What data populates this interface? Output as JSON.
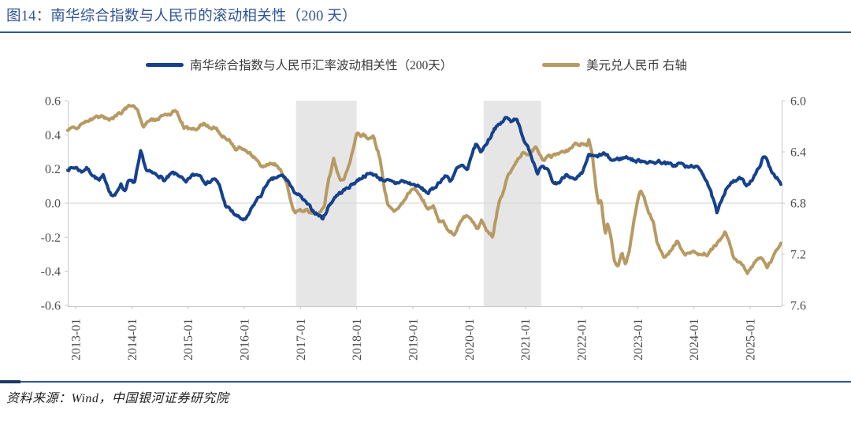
{
  "title": {
    "label": "图14：南华综合指数与人民币的滚动相关性（200 天）"
  },
  "legend": [
    {
      "label": "南华综合指数与人民币汇率波动相关性（200天）",
      "color": "#16418C"
    },
    {
      "label": "美元兑人民币 右轴",
      "color": "#B79A63"
    }
  ],
  "source": {
    "label": "资料来源：Wind，中国银河证券研究院"
  },
  "colors": {
    "title_blue": "#2F5597",
    "rule_blue": "#2F5597",
    "band_gray": "#E6E6E6",
    "axis_text": "#4D4D4D",
    "axis_line": "#C9C9C9",
    "grid_line": "#D9D9D9"
  },
  "chart_data": {
    "type": "line",
    "title": "南华综合指数与人民币的滚动相关性（200 天）",
    "x_axis": {
      "start_year": 2012.86,
      "end_year": 2025.56,
      "tick_years": [
        2013,
        2014,
        2015,
        2016,
        2017,
        2018,
        2019,
        2020,
        2021,
        2022,
        2023,
        2024,
        2025
      ],
      "tick_labels": [
        "2013-01",
        "2014-01",
        "2015-01",
        "2016-01",
        "2017-01",
        "2018-01",
        "2019-01",
        "2020-01",
        "2021-01",
        "2022-01",
        "2023-01",
        "2024-01",
        "2025-01"
      ]
    },
    "left_axis": {
      "min": -0.6,
      "max": 0.6,
      "tick_values": [
        0.6,
        0.4,
        0.2,
        0.0,
        -0.2,
        -0.4,
        -0.6
      ],
      "tick_labels": [
        "0.6",
        "0.4",
        "0.2",
        "0.0",
        "-0.2",
        "-0.4",
        "-0.6"
      ]
    },
    "right_axis": {
      "min": 6.0,
      "max": 7.6,
      "tick_values": [
        6.0,
        6.4,
        6.8,
        7.2,
        7.6
      ],
      "tick_labels": [
        "6.0",
        "6.4",
        "6.8",
        "7.2",
        "7.6"
      ]
    },
    "grid": {
      "horizontal_zero_line": true
    },
    "legend_position": "top",
    "shaded_bands": [
      {
        "from": 2016.92,
        "to": 2018.0
      },
      {
        "from": 2020.26,
        "to": 2021.28
      }
    ],
    "series": [
      {
        "name": "南华综合指数与人民币汇率波动相关性（200天）",
        "axis": "left",
        "color": "#16418C",
        "width": 4,
        "noise": 0.016,
        "seed": 7,
        "points": [
          [
            2012.86,
            0.2
          ],
          [
            2013.0,
            0.21
          ],
          [
            2013.1,
            0.185
          ],
          [
            2013.2,
            0.205
          ],
          [
            2013.32,
            0.16
          ],
          [
            2013.42,
            0.13
          ],
          [
            2013.5,
            0.16
          ],
          [
            2013.63,
            0.05
          ],
          [
            2013.7,
            0.04
          ],
          [
            2013.8,
            0.115
          ],
          [
            2013.87,
            0.07
          ],
          [
            2013.94,
            0.13
          ],
          [
            2014.05,
            0.12
          ],
          [
            2014.16,
            0.3
          ],
          [
            2014.26,
            0.19
          ],
          [
            2014.36,
            0.175
          ],
          [
            2014.5,
            0.16
          ],
          [
            2014.58,
            0.13
          ],
          [
            2014.72,
            0.175
          ],
          [
            2014.86,
            0.16
          ],
          [
            2014.96,
            0.115
          ],
          [
            2015.06,
            0.16
          ],
          [
            2015.2,
            0.17
          ],
          [
            2015.33,
            0.115
          ],
          [
            2015.47,
            0.145
          ],
          [
            2015.56,
            0.1
          ],
          [
            2015.66,
            -0.01
          ],
          [
            2015.75,
            -0.04
          ],
          [
            2015.84,
            -0.07
          ],
          [
            2015.93,
            -0.09
          ],
          [
            2016.03,
            -0.1
          ],
          [
            2016.12,
            -0.04
          ],
          [
            2016.22,
            0.02
          ],
          [
            2016.31,
            0.05
          ],
          [
            2016.4,
            0.115
          ],
          [
            2016.54,
            0.145
          ],
          [
            2016.68,
            0.16
          ],
          [
            2016.78,
            0.13
          ],
          [
            2016.85,
            0.08
          ],
          [
            2016.99,
            0.04
          ],
          [
            2017.1,
            0.0
          ],
          [
            2017.24,
            -0.05
          ],
          [
            2017.4,
            -0.09
          ],
          [
            2017.5,
            -0.02
          ],
          [
            2017.62,
            0.04
          ],
          [
            2017.8,
            0.08
          ],
          [
            2018.0,
            0.13
          ],
          [
            2018.13,
            0.16
          ],
          [
            2018.27,
            0.175
          ],
          [
            2018.41,
            0.145
          ],
          [
            2018.55,
            0.13
          ],
          [
            2018.69,
            0.115
          ],
          [
            2018.8,
            0.13
          ],
          [
            2018.94,
            0.115
          ],
          [
            2019.08,
            0.1
          ],
          [
            2019.27,
            0.06
          ],
          [
            2019.36,
            0.083
          ],
          [
            2019.53,
            0.145
          ],
          [
            2019.6,
            0.16
          ],
          [
            2019.67,
            0.13
          ],
          [
            2019.78,
            0.2
          ],
          [
            2019.88,
            0.22
          ],
          [
            2019.97,
            0.185
          ],
          [
            2020.06,
            0.3
          ],
          [
            2020.13,
            0.35
          ],
          [
            2020.2,
            0.3
          ],
          [
            2020.27,
            0.33
          ],
          [
            2020.38,
            0.39
          ],
          [
            2020.45,
            0.44
          ],
          [
            2020.55,
            0.46
          ],
          [
            2020.65,
            0.5
          ],
          [
            2020.75,
            0.485
          ],
          [
            2020.85,
            0.5
          ],
          [
            2020.95,
            0.38
          ],
          [
            2021.04,
            0.34
          ],
          [
            2021.16,
            0.23
          ],
          [
            2021.22,
            0.175
          ],
          [
            2021.28,
            0.21
          ],
          [
            2021.4,
            0.19
          ],
          [
            2021.5,
            0.115
          ],
          [
            2021.6,
            0.12
          ],
          [
            2021.74,
            0.175
          ],
          [
            2021.88,
            0.13
          ],
          [
            2022.02,
            0.175
          ],
          [
            2022.12,
            0.28
          ],
          [
            2022.26,
            0.27
          ],
          [
            2022.4,
            0.29
          ],
          [
            2022.54,
            0.25
          ],
          [
            2022.68,
            0.26
          ],
          [
            2022.82,
            0.27
          ],
          [
            2022.96,
            0.245
          ],
          [
            2023.1,
            0.25
          ],
          [
            2023.24,
            0.235
          ],
          [
            2023.38,
            0.245
          ],
          [
            2023.52,
            0.23
          ],
          [
            2023.66,
            0.22
          ],
          [
            2023.75,
            0.235
          ],
          [
            2023.89,
            0.207
          ],
          [
            2023.99,
            0.22
          ],
          [
            2024.13,
            0.19
          ],
          [
            2024.23,
            0.13
          ],
          [
            2024.37,
            -0.01
          ],
          [
            2024.41,
            -0.065
          ],
          [
            2024.51,
            0.037
          ],
          [
            2024.59,
            0.1
          ],
          [
            2024.73,
            0.13
          ],
          [
            2024.83,
            0.145
          ],
          [
            2024.93,
            0.106
          ],
          [
            2025.01,
            0.13
          ],
          [
            2025.11,
            0.175
          ],
          [
            2025.22,
            0.26
          ],
          [
            2025.27,
            0.27
          ],
          [
            2025.38,
            0.19
          ],
          [
            2025.48,
            0.145
          ],
          [
            2025.55,
            0.1
          ]
        ]
      },
      {
        "name": "美元兑人民币 右轴",
        "axis": "right",
        "color": "#B79A63",
        "width": 4,
        "noise": 0.02,
        "seed": 13,
        "points": [
          [
            2012.86,
            6.23
          ],
          [
            2013.0,
            6.22
          ],
          [
            2013.15,
            6.17
          ],
          [
            2013.28,
            6.15
          ],
          [
            2013.46,
            6.12
          ],
          [
            2013.6,
            6.16
          ],
          [
            2013.72,
            6.12
          ],
          [
            2013.84,
            6.08
          ],
          [
            2014.0,
            6.03
          ],
          [
            2014.1,
            6.06
          ],
          [
            2014.2,
            6.2
          ],
          [
            2014.3,
            6.16
          ],
          [
            2014.4,
            6.15
          ],
          [
            2014.55,
            6.12
          ],
          [
            2014.68,
            6.1
          ],
          [
            2014.8,
            6.08
          ],
          [
            2014.93,
            6.21
          ],
          [
            2015.07,
            6.23
          ],
          [
            2015.2,
            6.2
          ],
          [
            2015.28,
            6.18
          ],
          [
            2015.4,
            6.21
          ],
          [
            2015.5,
            6.21
          ],
          [
            2015.58,
            6.27
          ],
          [
            2015.65,
            6.28
          ],
          [
            2015.75,
            6.32
          ],
          [
            2015.84,
            6.38
          ],
          [
            2015.95,
            6.36
          ],
          [
            2016.04,
            6.4
          ],
          [
            2016.12,
            6.42
          ],
          [
            2016.22,
            6.46
          ],
          [
            2016.3,
            6.52
          ],
          [
            2016.42,
            6.49
          ],
          [
            2016.54,
            6.5
          ],
          [
            2016.65,
            6.55
          ],
          [
            2016.75,
            6.65
          ],
          [
            2016.9,
            6.88
          ],
          [
            2017.06,
            6.85
          ],
          [
            2017.2,
            6.87
          ],
          [
            2017.3,
            6.89
          ],
          [
            2017.42,
            6.83
          ],
          [
            2017.5,
            6.62
          ],
          [
            2017.59,
            6.46
          ],
          [
            2017.66,
            6.56
          ],
          [
            2017.71,
            6.63
          ],
          [
            2017.78,
            6.6
          ],
          [
            2017.85,
            6.53
          ],
          [
            2017.92,
            6.4
          ],
          [
            2018.0,
            6.26
          ],
          [
            2018.08,
            6.28
          ],
          [
            2018.15,
            6.27
          ],
          [
            2018.2,
            6.3
          ],
          [
            2018.3,
            6.28
          ],
          [
            2018.41,
            6.44
          ],
          [
            2018.5,
            6.7
          ],
          [
            2018.55,
            6.81
          ],
          [
            2018.66,
            6.87
          ],
          [
            2018.77,
            6.83
          ],
          [
            2018.92,
            6.72
          ],
          [
            2019.05,
            6.69
          ],
          [
            2019.22,
            6.81
          ],
          [
            2019.27,
            6.86
          ],
          [
            2019.36,
            6.82
          ],
          [
            2019.47,
            6.94
          ],
          [
            2019.55,
            6.95
          ],
          [
            2019.64,
            7.02
          ],
          [
            2019.74,
            7.04
          ],
          [
            2019.88,
            6.92
          ],
          [
            2019.97,
            6.89
          ],
          [
            2020.06,
            6.95
          ],
          [
            2020.15,
            7.0
          ],
          [
            2020.22,
            6.94
          ],
          [
            2020.31,
            7.02
          ],
          [
            2020.42,
            7.06
          ],
          [
            2020.53,
            6.79
          ],
          [
            2020.6,
            6.72
          ],
          [
            2020.68,
            6.6
          ],
          [
            2020.77,
            6.52
          ],
          [
            2020.85,
            6.47
          ],
          [
            2020.95,
            6.41
          ],
          [
            2021.04,
            6.43
          ],
          [
            2021.1,
            6.4
          ],
          [
            2021.18,
            6.37
          ],
          [
            2021.25,
            6.42
          ],
          [
            2021.32,
            6.46
          ],
          [
            2021.4,
            6.44
          ],
          [
            2021.5,
            6.43
          ],
          [
            2021.6,
            6.41
          ],
          [
            2021.68,
            6.4
          ],
          [
            2021.74,
            6.39
          ],
          [
            2021.82,
            6.36
          ],
          [
            2021.88,
            6.34
          ],
          [
            2021.95,
            6.35
          ],
          [
            2022.02,
            6.33
          ],
          [
            2022.09,
            6.35
          ],
          [
            2022.13,
            6.31
          ],
          [
            2022.19,
            6.4
          ],
          [
            2022.25,
            6.66
          ],
          [
            2022.3,
            6.81
          ],
          [
            2022.35,
            6.78
          ],
          [
            2022.42,
            7.05
          ],
          [
            2022.46,
            6.96
          ],
          [
            2022.52,
            7.06
          ],
          [
            2022.58,
            7.25
          ],
          [
            2022.65,
            7.29
          ],
          [
            2022.72,
            7.18
          ],
          [
            2022.78,
            7.29
          ],
          [
            2022.85,
            7.18
          ],
          [
            2022.92,
            6.98
          ],
          [
            2023.0,
            6.76
          ],
          [
            2023.05,
            6.71
          ],
          [
            2023.12,
            6.77
          ],
          [
            2023.2,
            6.88
          ],
          [
            2023.28,
            6.95
          ],
          [
            2023.34,
            7.1
          ],
          [
            2023.4,
            7.16
          ],
          [
            2023.46,
            7.22
          ],
          [
            2023.55,
            7.19
          ],
          [
            2023.62,
            7.15
          ],
          [
            2023.7,
            7.1
          ],
          [
            2023.78,
            7.16
          ],
          [
            2023.84,
            7.2
          ],
          [
            2023.92,
            7.19
          ],
          [
            2024.0,
            7.17
          ],
          [
            2024.08,
            7.21
          ],
          [
            2024.16,
            7.19
          ],
          [
            2024.25,
            7.2
          ],
          [
            2024.35,
            7.14
          ],
          [
            2024.45,
            7.1
          ],
          [
            2024.55,
            7.02
          ],
          [
            2024.62,
            7.08
          ],
          [
            2024.7,
            7.22
          ],
          [
            2024.8,
            7.26
          ],
          [
            2024.88,
            7.3
          ],
          [
            2024.95,
            7.34
          ],
          [
            2025.05,
            7.28
          ],
          [
            2025.12,
            7.25
          ],
          [
            2025.2,
            7.22
          ],
          [
            2025.3,
            7.31
          ],
          [
            2025.38,
            7.25
          ],
          [
            2025.45,
            7.18
          ],
          [
            2025.5,
            7.14
          ],
          [
            2025.55,
            7.12
          ]
        ]
      }
    ]
  }
}
